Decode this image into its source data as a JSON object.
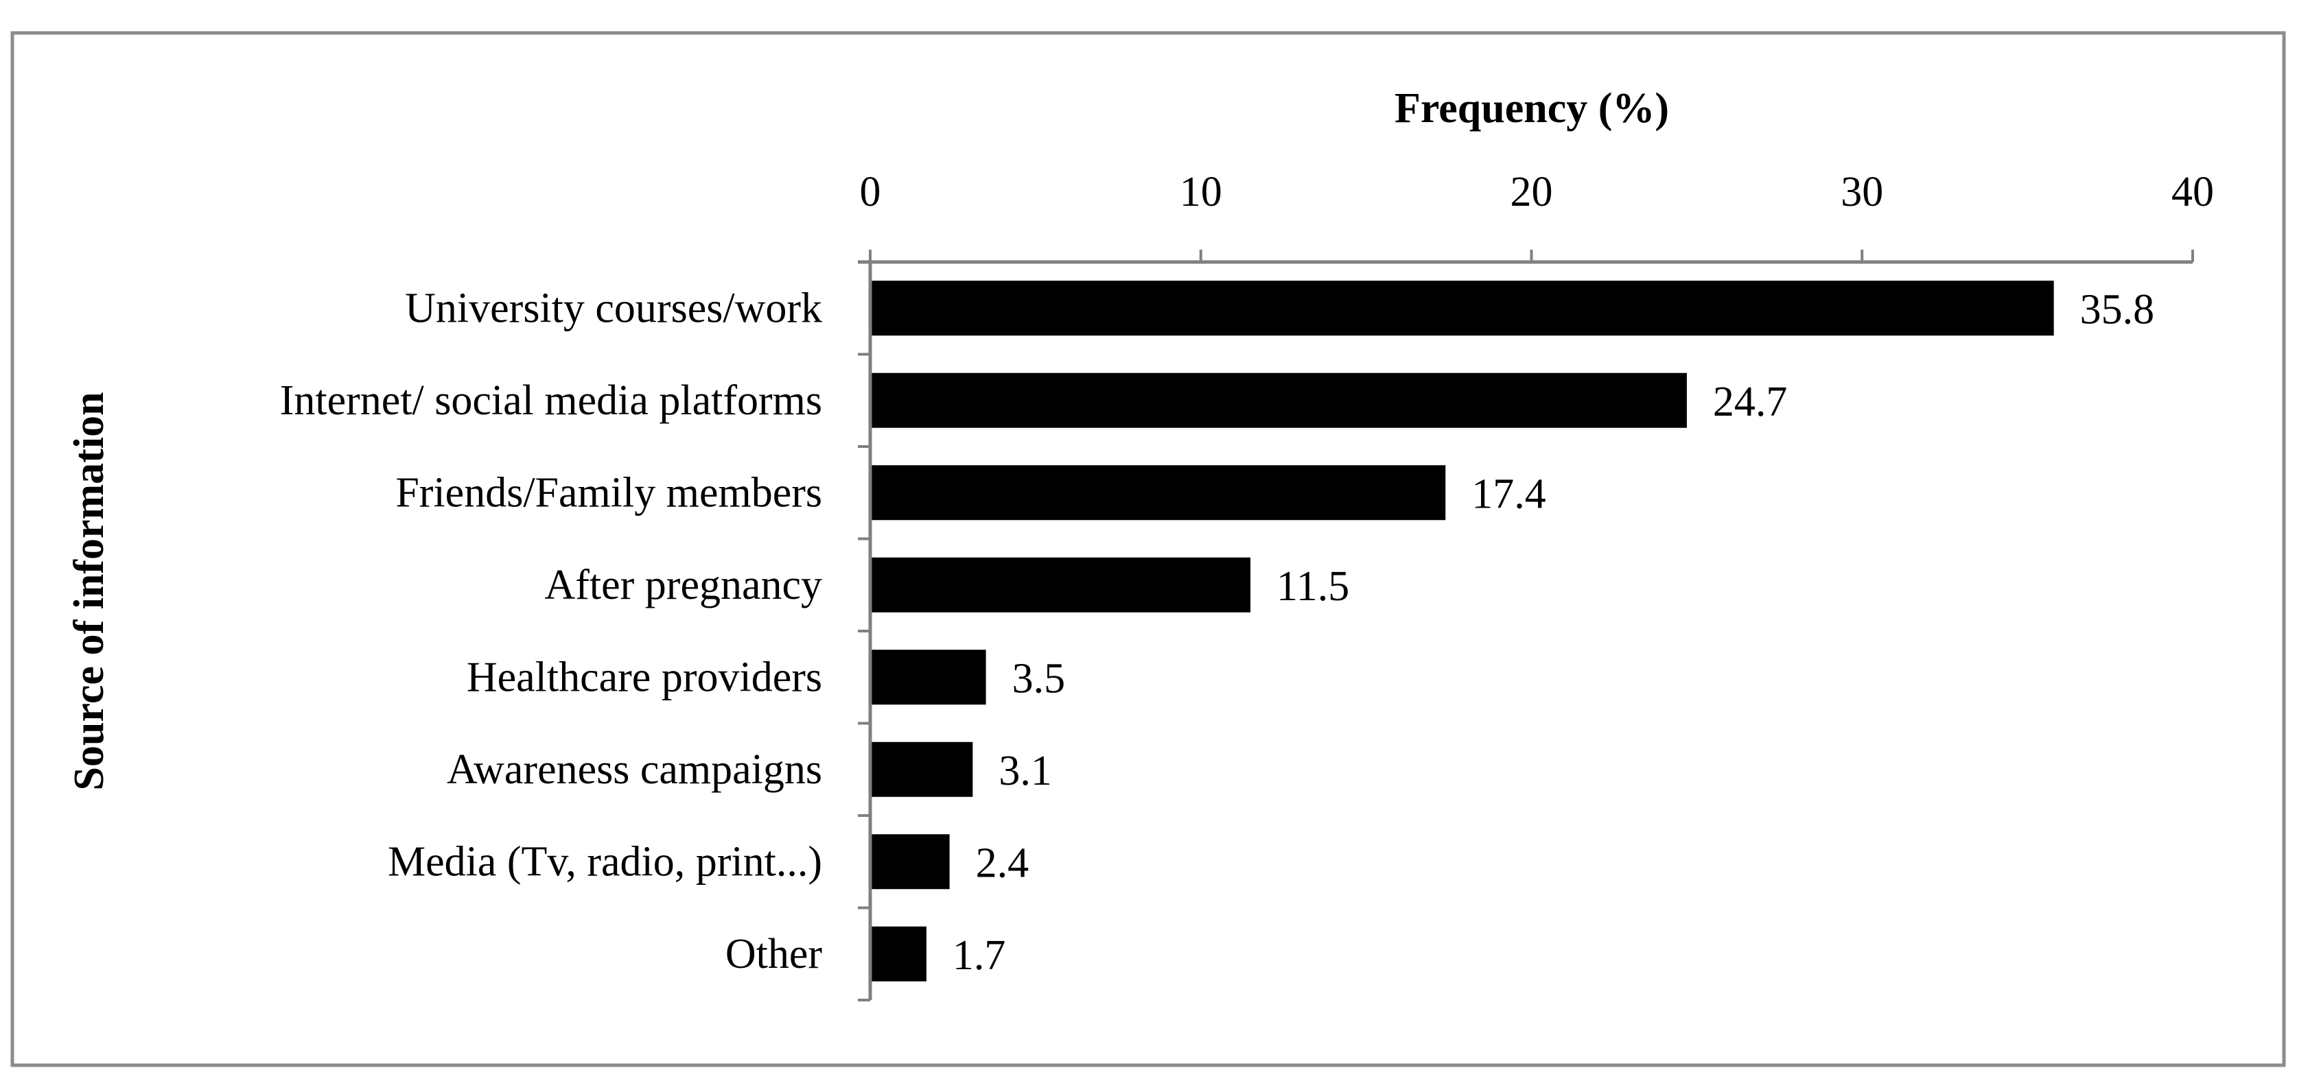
{
  "chart_data": {
    "type": "bar",
    "orientation": "horizontal",
    "title": "",
    "xlabel": "Frequency (%)",
    "ylabel": "Source of information",
    "xlim": [
      0,
      40
    ],
    "x_ticks": [
      "0",
      "10",
      "20",
      "30",
      "40"
    ],
    "x_axis_position": "top",
    "grid": false,
    "bar_color": "#000000",
    "axis_color": "#808080",
    "categories": [
      "University courses/work",
      "Internet/ social media platforms",
      "Friends/Family members",
      "After  pregnancy",
      "Healthcare providers",
      "Awareness campaigns",
      "Media (Tv,  radio,  print...)",
      "Other"
    ],
    "values": [
      35.8,
      24.7,
      17.4,
      11.5,
      3.5,
      3.1,
      2.4,
      1.7
    ],
    "data_labels": [
      "35.8",
      "24.7",
      "17.4",
      "11.5",
      "3.5",
      "3.1",
      "2.4",
      "1.7"
    ]
  }
}
